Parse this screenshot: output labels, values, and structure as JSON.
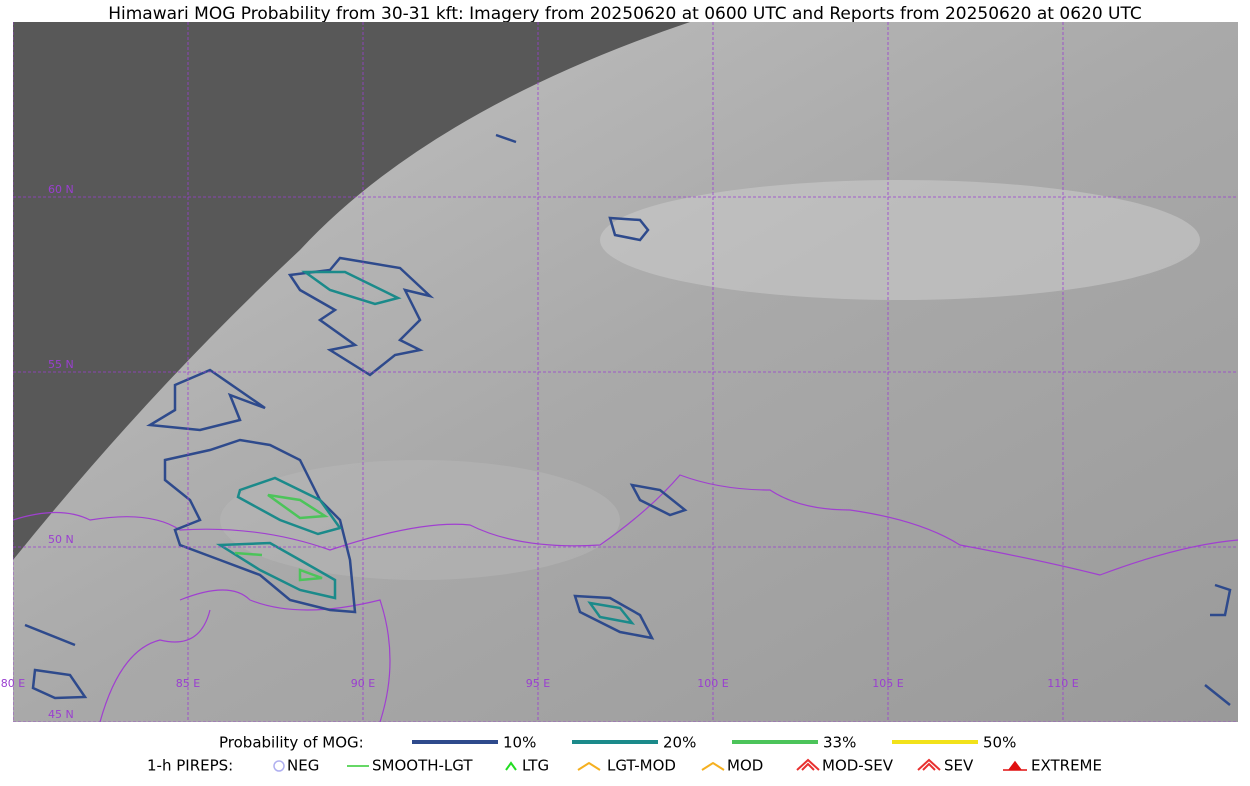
{
  "title": "Himawari MOG Probability from 30-31 kft: Imagery from 20250620 at 0600 UTC and Reports from 20250620 at 0620 UTC",
  "map": {
    "lon_labels": [
      "80 E",
      "85 E",
      "90 E",
      "95 E",
      "100 E",
      "105 E",
      "110 E"
    ],
    "lat_labels": [
      "60 N",
      "55 N",
      "50 N",
      "45 N"
    ]
  },
  "legend": {
    "probability": {
      "title": "Probability of MOG:",
      "items": [
        {
          "label": "10%",
          "color": "#2e4a8c"
        },
        {
          "label": "20%",
          "color": "#1b8a8a"
        },
        {
          "label": "33%",
          "color": "#4cc45a"
        },
        {
          "label": "50%",
          "color": "#f2e21a"
        }
      ]
    },
    "pireps": {
      "title": "1-h PIREPS:",
      "items": [
        {
          "label": "NEG",
          "color": "#b0b0f0"
        },
        {
          "label": "SMOOTH-LGT",
          "color": "#33cc33"
        },
        {
          "label": "LTG",
          "color": "#22dd22"
        },
        {
          "label": "LGT-MOD",
          "color": "#f5b020"
        },
        {
          "label": "MOD",
          "color": "#f5b020"
        },
        {
          "label": "MOD-SEV",
          "color": "#e83030"
        },
        {
          "label": "SEV",
          "color": "#e83030"
        },
        {
          "label": "EXTREME",
          "color": "#e01010"
        }
      ]
    }
  }
}
